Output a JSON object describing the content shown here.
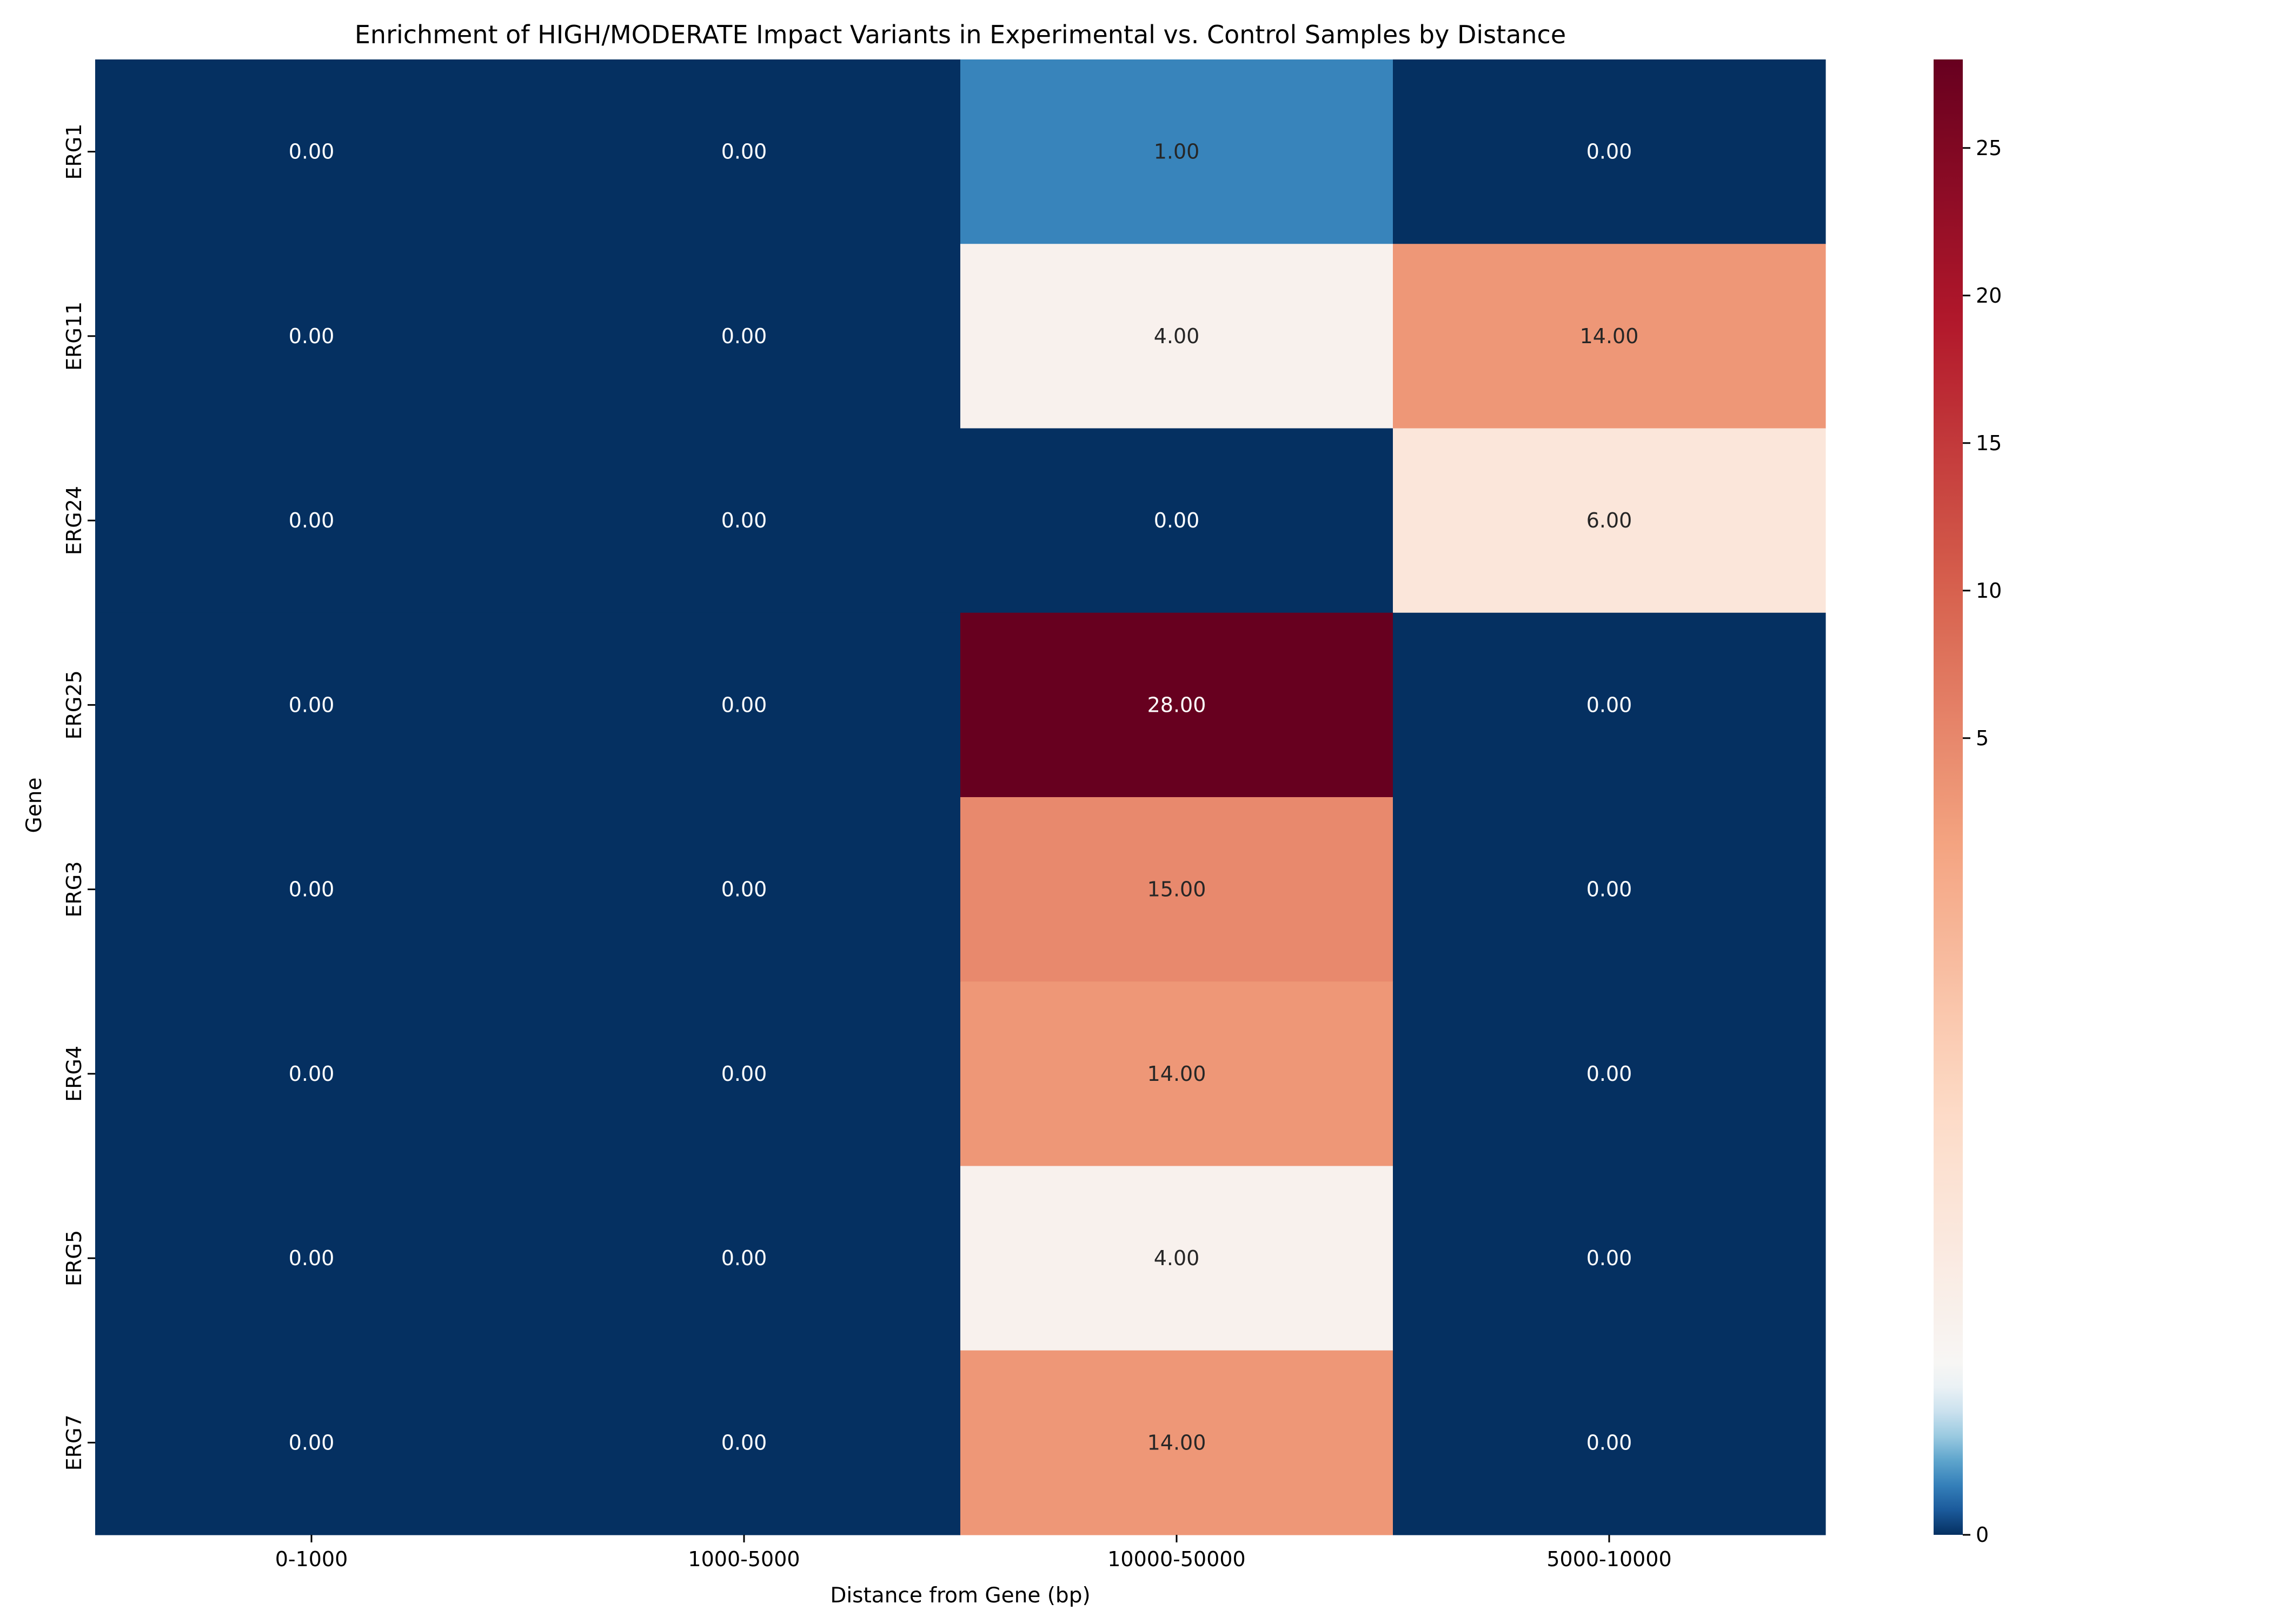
{
  "chart_data": {
    "type": "heatmap",
    "title": "Enrichment of HIGH/MODERATE Impact Variants in Experimental vs. Control Samples by Distance",
    "xlabel": "Distance from Gene (bp)",
    "ylabel": "Gene",
    "x_categories": [
      "0-1000",
      "1000-5000",
      "10000-50000",
      "5000-10000"
    ],
    "y_categories": [
      "ERG1",
      "ERG11",
      "ERG24",
      "ERG25",
      "ERG3",
      "ERG4",
      "ERG5",
      "ERG7"
    ],
    "values": [
      [
        0,
        0,
        1,
        0
      ],
      [
        0,
        0,
        4,
        14
      ],
      [
        0,
        0,
        0,
        6
      ],
      [
        0,
        0,
        28,
        0
      ],
      [
        0,
        0,
        15,
        0
      ],
      [
        0,
        0,
        14,
        0
      ],
      [
        0,
        0,
        4,
        0
      ],
      [
        0,
        0,
        14,
        0
      ]
    ],
    "cell_labels": [
      [
        "0.00",
        "0.00",
        "1.00",
        "0.00"
      ],
      [
        "0.00",
        "0.00",
        "4.00",
        "14.00"
      ],
      [
        "0.00",
        "0.00",
        "0.00",
        "6.00"
      ],
      [
        "0.00",
        "0.00",
        "28.00",
        "0.00"
      ],
      [
        "0.00",
        "0.00",
        "15.00",
        "0.00"
      ],
      [
        "0.00",
        "0.00",
        "14.00",
        "0.00"
      ],
      [
        "0.00",
        "0.00",
        "4.00",
        "0.00"
      ],
      [
        "0.00",
        "0.00",
        "14.00",
        "0.00"
      ]
    ],
    "colormap": "RdBu_r",
    "colorbar": {
      "scale": "two-slope, centre 3",
      "min": 0,
      "center": 3,
      "max": 28,
      "ticks": [
        0,
        5,
        10,
        15,
        20,
        25
      ],
      "tick_labels": [
        "0",
        "5",
        "10",
        "15",
        "20",
        "25"
      ]
    },
    "colors": {
      "stops": [
        "#053061",
        "#2166ac",
        "#4393c3",
        "#92c5de",
        "#d1e5f0",
        "#f7f7f7",
        "#fddbc7",
        "#f4a582",
        "#d6604d",
        "#b2182b",
        "#67001f"
      ],
      "text_light": "#ffffff",
      "text_dark": "#262626",
      "axis": "#000000"
    }
  }
}
